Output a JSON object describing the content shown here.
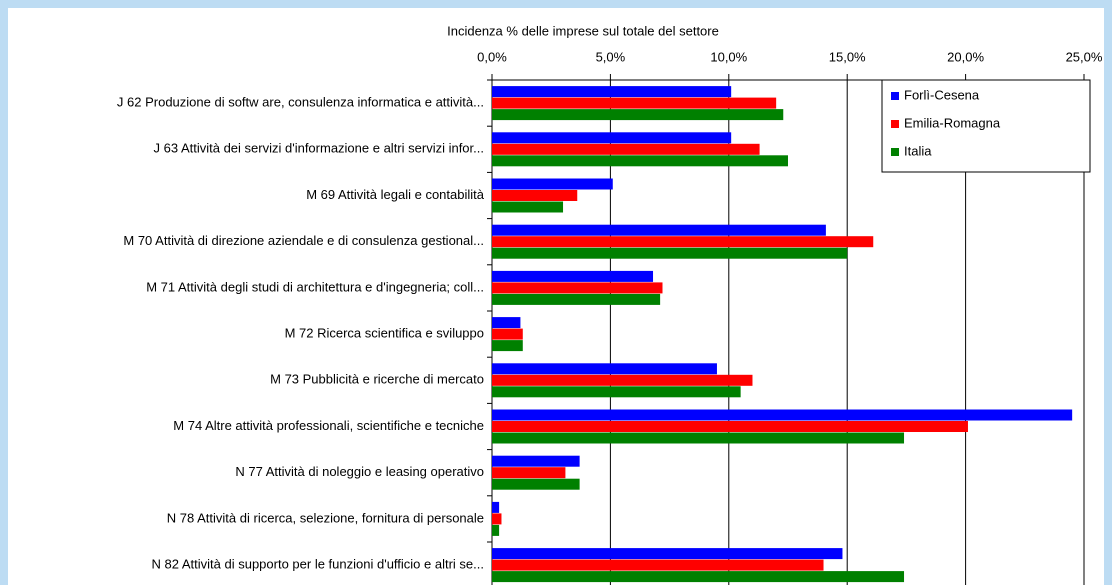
{
  "chart_data": {
    "type": "barh",
    "x_axis_label": "Incidenza % delle imprese sul totale del settore",
    "categories": [
      "J 62 Produzione di softw are, consulenza informatica e attività...",
      "J 63 Attività dei servizi d'informazione e altri servizi infor...",
      "M 69 Attività legali e contabilità",
      "M 70 Attività di direzione aziendale e di consulenza gestional...",
      "M 71 Attività degli studi di architettura e d'ingegneria; coll...",
      "M 72 Ricerca scientifica e sviluppo",
      "M 73 Pubblicità e ricerche di mercato",
      "M 74 Altre attività professionali, scientifiche e tecniche",
      "N 77 Attività di noleggio e leasing operativo",
      "N 78 Attività di ricerca, selezione, fornitura di personale",
      "N 82 Attività di supporto per le funzioni d'ufficio e altri se..."
    ],
    "series": [
      {
        "name": "Forlì-Cesena",
        "color": "#0000ff",
        "values": [
          10.1,
          10.1,
          5.1,
          14.1,
          6.8,
          1.2,
          9.5,
          24.5,
          3.7,
          0.3,
          14.8
        ]
      },
      {
        "name": "Emilia-Romagna",
        "color": "#ff0000",
        "values": [
          12.0,
          11.3,
          3.6,
          16.1,
          7.2,
          1.3,
          11.0,
          20.1,
          3.1,
          0.4,
          14.0
        ]
      },
      {
        "name": "Italia",
        "color": "#008000",
        "values": [
          12.3,
          12.5,
          3.0,
          15.0,
          7.1,
          1.3,
          10.5,
          17.4,
          3.7,
          0.3,
          17.4
        ]
      }
    ],
    "xlim": [
      0,
      25
    ],
    "xticks": [
      {
        "value": 0,
        "label": "0,0%"
      },
      {
        "value": 5,
        "label": "5,0%"
      },
      {
        "value": 10,
        "label": "10,0%"
      },
      {
        "value": 15,
        "label": "15,0%"
      },
      {
        "value": 20,
        "label": "20,0%"
      },
      {
        "value": 25,
        "label": "25,0%"
      }
    ],
    "grid": true,
    "legend": "upper right"
  }
}
